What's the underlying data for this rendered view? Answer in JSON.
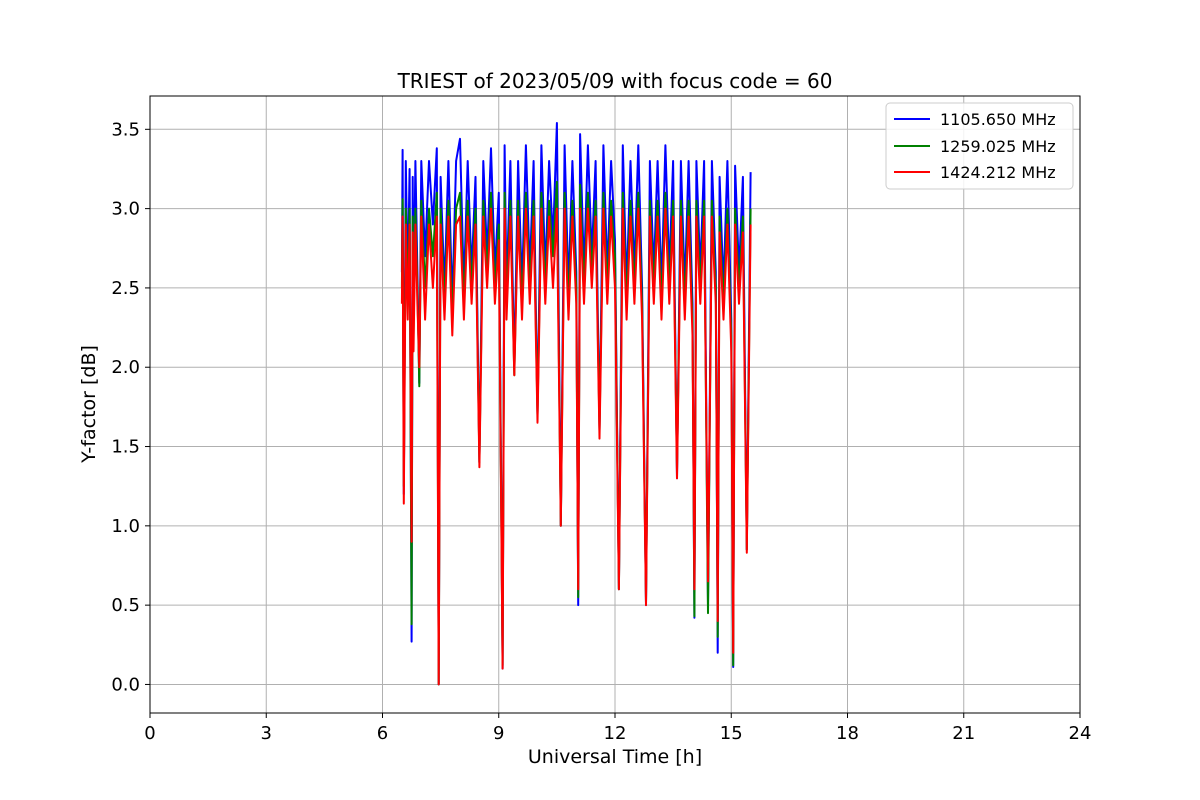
{
  "chart_data": {
    "type": "line",
    "title": "TRIEST of 2023/05/09 with focus code = 60",
    "xlabel": "Universal Time [h]",
    "ylabel": "Y-factor [dB]",
    "xlim": [
      0,
      24
    ],
    "ylim": [
      -0.18,
      3.71
    ],
    "xticks": [
      0,
      3,
      6,
      9,
      12,
      15,
      18,
      21,
      24
    ],
    "yticks": [
      0.0,
      0.5,
      1.0,
      1.5,
      2.0,
      2.5,
      3.0,
      3.5
    ],
    "grid": true,
    "legend_position": "top-right",
    "series": [
      {
        "name": "1105.650 MHz",
        "color": "#0000ff",
        "x": [
          6.5,
          6.52,
          6.55,
          6.6,
          6.65,
          6.7,
          6.75,
          6.78,
          6.8,
          6.85,
          6.9,
          6.95,
          7.0,
          7.1,
          7.2,
          7.3,
          7.4,
          7.45,
          7.5,
          7.6,
          7.7,
          7.8,
          7.9,
          8.0,
          8.1,
          8.2,
          8.3,
          8.4,
          8.5,
          8.6,
          8.7,
          8.8,
          8.9,
          9.0,
          9.1,
          9.15,
          9.2,
          9.3,
          9.4,
          9.5,
          9.6,
          9.7,
          9.8,
          9.9,
          10.0,
          10.1,
          10.2,
          10.3,
          10.4,
          10.5,
          10.6,
          10.7,
          10.8,
          10.9,
          11.0,
          11.05,
          11.1,
          11.2,
          11.3,
          11.4,
          11.5,
          11.6,
          11.7,
          11.8,
          11.9,
          12.0,
          12.1,
          12.2,
          12.3,
          12.4,
          12.5,
          12.6,
          12.7,
          12.8,
          12.9,
          13.0,
          13.1,
          13.2,
          13.3,
          13.4,
          13.5,
          13.6,
          13.7,
          13.8,
          13.9,
          14.0,
          14.05,
          14.1,
          14.2,
          14.3,
          14.4,
          14.5,
          14.6,
          14.65,
          14.7,
          14.8,
          14.9,
          15.0,
          15.05,
          15.1,
          15.2,
          15.3,
          15.4,
          15.5
        ],
        "values": [
          2.6,
          3.37,
          1.2,
          3.3,
          2.5,
          3.25,
          0.27,
          3.2,
          2.3,
          3.3,
          2.6,
          1.9,
          3.3,
          2.7,
          3.3,
          2.9,
          3.38,
          0.0,
          3.2,
          2.5,
          3.3,
          2.4,
          3.3,
          3.44,
          2.5,
          3.3,
          2.6,
          3.2,
          1.4,
          3.3,
          2.7,
          3.38,
          2.6,
          3.1,
          0.1,
          3.4,
          2.5,
          3.3,
          2.0,
          3.3,
          2.5,
          3.4,
          2.6,
          3.3,
          1.7,
          3.4,
          2.6,
          3.3,
          2.8,
          3.54,
          1.0,
          3.4,
          2.5,
          3.3,
          2.6,
          0.5,
          3.47,
          2.6,
          3.4,
          2.7,
          3.3,
          1.6,
          3.4,
          2.6,
          3.3,
          2.8,
          0.6,
          3.4,
          2.5,
          3.3,
          2.6,
          3.4,
          2.5,
          0.5,
          3.3,
          2.6,
          3.3,
          2.5,
          3.4,
          2.6,
          3.3,
          1.3,
          3.3,
          2.5,
          3.3,
          2.4,
          0.42,
          3.3,
          2.6,
          3.3,
          0.5,
          3.3,
          2.6,
          0.2,
          3.2,
          2.5,
          3.3,
          2.3,
          0.11,
          3.27,
          2.6,
          3.2,
          0.85,
          3.23
        ]
      },
      {
        "name": "1259.025 MHz",
        "color": "#008000",
        "x": [
          6.5,
          6.52,
          6.55,
          6.6,
          6.65,
          6.7,
          6.75,
          6.78,
          6.8,
          6.85,
          6.9,
          6.95,
          7.0,
          7.1,
          7.2,
          7.3,
          7.4,
          7.45,
          7.5,
          7.6,
          7.7,
          7.8,
          7.9,
          8.0,
          8.1,
          8.2,
          8.3,
          8.4,
          8.5,
          8.6,
          8.7,
          8.8,
          8.9,
          9.0,
          9.1,
          9.15,
          9.2,
          9.3,
          9.4,
          9.5,
          9.6,
          9.7,
          9.8,
          9.9,
          10.0,
          10.1,
          10.2,
          10.3,
          10.4,
          10.5,
          10.6,
          10.7,
          10.8,
          10.9,
          11.0,
          11.05,
          11.1,
          11.2,
          11.3,
          11.4,
          11.5,
          11.6,
          11.7,
          11.8,
          11.9,
          12.0,
          12.1,
          12.2,
          12.3,
          12.4,
          12.5,
          12.6,
          12.7,
          12.8,
          12.9,
          13.0,
          13.1,
          13.2,
          13.3,
          13.4,
          13.5,
          13.6,
          13.7,
          13.8,
          13.9,
          14.0,
          14.05,
          14.1,
          14.2,
          14.3,
          14.4,
          14.5,
          14.6,
          14.65,
          14.7,
          14.8,
          14.9,
          15.0,
          15.05,
          15.1,
          15.2,
          15.3,
          15.4,
          15.5
        ],
        "values": [
          2.5,
          3.06,
          1.25,
          3.0,
          2.4,
          3.0,
          0.38,
          2.95,
          2.2,
          3.0,
          2.5,
          1.88,
          3.05,
          2.5,
          3.0,
          2.7,
          3.1,
          0.0,
          3.0,
          2.4,
          3.05,
          2.3,
          3.0,
          3.1,
          2.4,
          3.05,
          2.5,
          3.0,
          1.4,
          3.05,
          2.6,
          3.1,
          2.5,
          2.9,
          0.12,
          3.1,
          2.4,
          3.05,
          1.95,
          3.05,
          2.4,
          3.1,
          2.5,
          3.05,
          1.7,
          3.1,
          2.5,
          3.05,
          2.7,
          3.17,
          1.0,
          3.1,
          2.4,
          3.05,
          2.5,
          0.55,
          3.15,
          2.5,
          3.1,
          2.6,
          3.05,
          1.6,
          3.1,
          2.5,
          3.05,
          2.7,
          0.6,
          3.1,
          2.4,
          3.05,
          2.5,
          3.1,
          2.4,
          0.52,
          3.05,
          2.5,
          3.05,
          2.4,
          3.1,
          2.5,
          3.05,
          1.35,
          3.05,
          2.4,
          3.05,
          2.3,
          0.43,
          3.05,
          2.5,
          3.05,
          0.45,
          3.05,
          2.5,
          0.3,
          2.95,
          2.4,
          3.0,
          2.2,
          0.12,
          3.0,
          2.5,
          2.95,
          0.85,
          3.0
        ]
      },
      {
        "name": "1424.212 MHz",
        "color": "#ff0000",
        "x": [
          6.5,
          6.52,
          6.55,
          6.6,
          6.65,
          6.7,
          6.75,
          6.78,
          6.8,
          6.85,
          6.9,
          6.95,
          7.0,
          7.1,
          7.2,
          7.3,
          7.4,
          7.45,
          7.5,
          7.6,
          7.7,
          7.8,
          7.9,
          8.0,
          8.1,
          8.2,
          8.3,
          8.4,
          8.5,
          8.6,
          8.7,
          8.8,
          8.9,
          9.0,
          9.1,
          9.15,
          9.2,
          9.3,
          9.4,
          9.5,
          9.6,
          9.7,
          9.8,
          9.9,
          10.0,
          10.1,
          10.2,
          10.3,
          10.4,
          10.5,
          10.6,
          10.7,
          10.8,
          10.9,
          11.0,
          11.05,
          11.1,
          11.2,
          11.3,
          11.4,
          11.5,
          11.6,
          11.7,
          11.8,
          11.9,
          12.0,
          12.1,
          12.2,
          12.3,
          12.4,
          12.5,
          12.6,
          12.7,
          12.8,
          12.9,
          13.0,
          13.1,
          13.2,
          13.3,
          13.4,
          13.5,
          13.6,
          13.7,
          13.8,
          13.9,
          14.0,
          14.05,
          14.1,
          14.2,
          14.3,
          14.4,
          14.5,
          14.6,
          14.65,
          14.7,
          14.8,
          14.9,
          15.0,
          15.05,
          15.1,
          15.2,
          15.3,
          15.4,
          15.5
        ],
        "values": [
          2.4,
          2.95,
          1.14,
          2.9,
          2.3,
          2.9,
          0.9,
          2.85,
          2.1,
          2.9,
          2.4,
          2.0,
          2.95,
          2.3,
          2.9,
          2.5,
          2.95,
          0.0,
          2.9,
          2.3,
          2.95,
          2.2,
          2.9,
          2.95,
          2.3,
          2.95,
          2.4,
          2.9,
          1.37,
          2.95,
          2.5,
          3.0,
          2.4,
          2.8,
          0.1,
          3.0,
          2.3,
          2.95,
          1.95,
          2.95,
          2.3,
          3.0,
          2.4,
          2.95,
          1.65,
          3.0,
          2.4,
          2.95,
          2.5,
          3.0,
          1.0,
          3.0,
          2.3,
          2.95,
          2.4,
          0.6,
          3.0,
          2.4,
          3.0,
          2.5,
          2.95,
          1.55,
          3.0,
          2.4,
          2.95,
          2.5,
          0.6,
          3.0,
          2.3,
          2.95,
          2.4,
          3.0,
          2.3,
          0.5,
          2.95,
          2.4,
          2.95,
          2.3,
          3.0,
          2.4,
          2.95,
          1.3,
          2.95,
          2.3,
          2.95,
          2.2,
          0.6,
          2.95,
          2.4,
          2.95,
          0.65,
          2.95,
          2.4,
          0.4,
          2.85,
          2.3,
          2.9,
          2.1,
          0.2,
          2.9,
          2.4,
          2.85,
          0.83,
          2.9
        ]
      }
    ]
  }
}
